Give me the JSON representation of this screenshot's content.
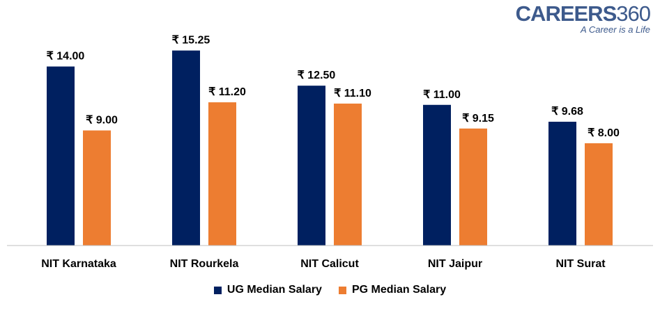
{
  "logo": {
    "brand": "CAREERS",
    "brand_num": "360",
    "tagline": "A Career is a Life"
  },
  "chart_data": {
    "type": "bar",
    "title": "",
    "xlabel": "",
    "ylabel": "",
    "ylim": [
      0,
      19.2
    ],
    "grid": false,
    "legend_position": "bottom",
    "value_prefix": "₹ ",
    "categories": [
      "NIT Karnataka",
      "NIT Rourkela",
      "NIT Calicut",
      "NIT Jaipur",
      "NIT Surat"
    ],
    "series": [
      {
        "name": "UG Median Salary",
        "color": "#002060",
        "values": [
          14.0,
          15.25,
          12.5,
          11.0,
          9.68
        ]
      },
      {
        "name": "PG Median Salary",
        "color": "#ED7D31",
        "values": [
          9.0,
          11.2,
          11.1,
          9.15,
          8.0
        ]
      }
    ]
  }
}
